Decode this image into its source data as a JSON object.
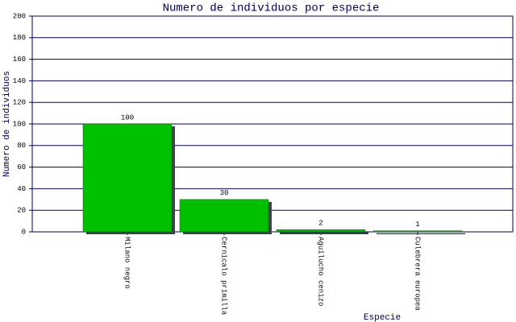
{
  "chart_data": {
    "type": "bar",
    "title": "Numero de individuos por especie",
    "y_label": "Numero de individuos",
    "x_label": "Especie",
    "categories": [
      "Milano negro",
      "Cernícalo primilla",
      "Aguilucho cenizo",
      "Culebrera europea"
    ],
    "values": [
      100,
      30,
      2,
      1
    ],
    "color": "#00c000",
    "ylim": [
      0,
      200
    ],
    "yticks": [
      0,
      20,
      40,
      60,
      80,
      100,
      120,
      140,
      160,
      180,
      200
    ],
    "grid": true
  }
}
